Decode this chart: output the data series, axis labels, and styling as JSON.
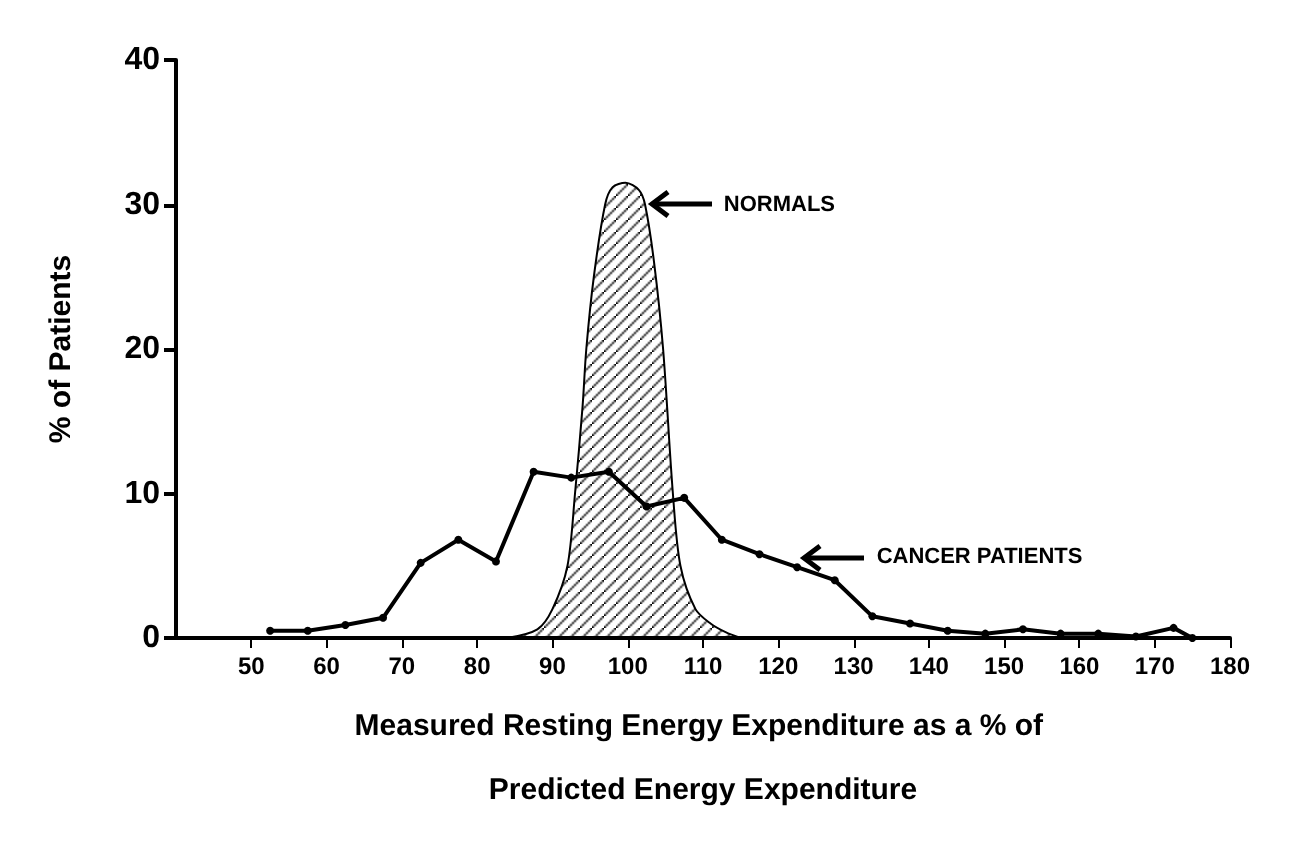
{
  "chart_data": {
    "type": "line",
    "xlabel": "Measured Resting Energy Expenditure as a % of Predicted Energy Expenditure",
    "ylabel": "% of Patients",
    "xlim": [
      40,
      180
    ],
    "xticks": [
      50,
      60,
      70,
      80,
      90,
      100,
      110,
      120,
      130,
      140,
      150,
      160,
      170,
      180
    ],
    "ylim": [
      0,
      40
    ],
    "yticks": [
      0,
      10,
      20,
      30,
      40
    ],
    "grid": false,
    "legend": "right",
    "series": [
      {
        "name": "NORMALS",
        "type": "area",
        "color": "#000000",
        "marker": "none",
        "x": [
          84,
          88,
          90,
          92,
          93,
          94,
          94.5,
          95.5,
          97,
          98,
          99.7,
          101.5,
          102.3,
          103.5,
          104.7,
          106,
          107,
          109,
          111,
          113,
          115
        ],
        "values": [
          0,
          0.6,
          2,
          5,
          10,
          16,
          20,
          25,
          30,
          31.2,
          31.5,
          31,
          30,
          26,
          20,
          10,
          5,
          2,
          1,
          0.4,
          0
        ]
      },
      {
        "name": "CANCER PATIENTS",
        "color": "#000000",
        "marker": "circle",
        "x": [
          52.5,
          57.5,
          62.5,
          67.5,
          72.5,
          77.5,
          82.5,
          87.5,
          92.5,
          97.5,
          102.5,
          107.5,
          112.5,
          117.5,
          122.5,
          127.5,
          132.5,
          137.5,
          142.5,
          147.5,
          152.5,
          157.5,
          162.5,
          167.5,
          172.5,
          175
        ],
        "values": [
          0.5,
          0.5,
          0.9,
          1.4,
          5.2,
          6.8,
          5.3,
          11.5,
          11.1,
          11.5,
          9.1,
          9.7,
          6.8,
          5.8,
          4.9,
          4.0,
          1.5,
          1.0,
          0.5,
          0.3,
          0.6,
          0.3,
          0.3,
          0.1,
          0.7,
          0
        ]
      }
    ]
  }
}
